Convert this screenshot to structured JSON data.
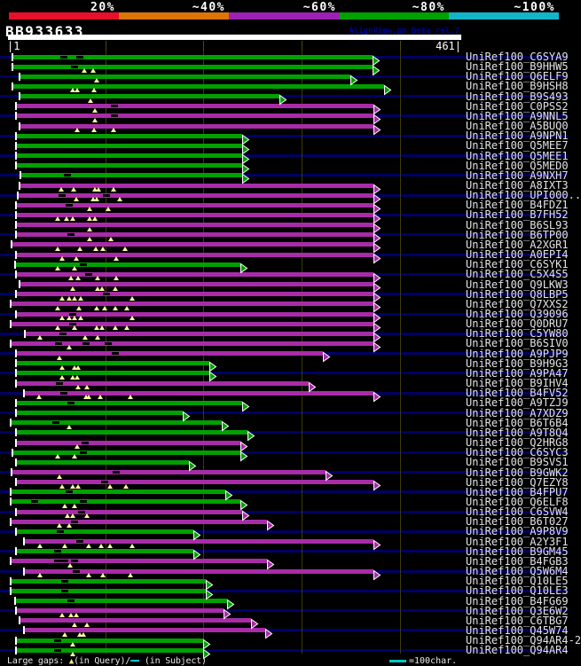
{
  "title": "BB933633",
  "watermark": "AlignView.pm Beta rel.7",
  "identity_scale": {
    "labels": [
      "20%",
      "~40%",
      "~60%",
      "~80%",
      "~100%"
    ],
    "colors": [
      "#e81028",
      "#dc7408",
      "#9c22b4",
      "#00a000",
      "#14b4c8"
    ]
  },
  "ruler": {
    "start_label": "|1",
    "end_label": "461|"
  },
  "footer": {
    "prefix": "Large gaps: ",
    "query_gap_symbol": "▲",
    "mid": "(in Query)/",
    "subject_gap_color": "#00c8c8",
    "suffix": " (in Subject)",
    "legend_text": "=100char."
  },
  "chart_data": {
    "type": "alignment-coverage",
    "query": {
      "id": "BB933633",
      "start": 1,
      "end": 461
    },
    "scale_note": "x_px = 9 + (residue-1)*1.108; gridlines every 100 residues",
    "colors": {
      "green_bar": "#00a000",
      "magenta_bar": "#a82ca8"
    },
    "rows": [
      {
        "label": "UniRef100_C6SYA9",
        "cls": "g",
        "s": 14,
        "tip": 427,
        "dashes": [
          72,
          90
        ],
        "tris": []
      },
      {
        "label": "UniRef100_B9HHW5",
        "cls": "g",
        "s": 14,
        "tip": 427,
        "dashes": [
          84
        ],
        "tris": [
          95,
          105
        ]
      },
      {
        "label": "UniRef100_Q6ELF9",
        "cls": "g",
        "s": 22,
        "tip": 402,
        "dashes": [],
        "tris": [
          109
        ]
      },
      {
        "label": "UniRef100_B9HSH8",
        "cls": "g",
        "s": 14,
        "tip": 440,
        "dashes": [],
        "tris": [
          82,
          87,
          106
        ]
      },
      {
        "label": "UniRef100_B9S493",
        "cls": "g",
        "s": 22,
        "tip": 322,
        "dashes": [],
        "tris": [
          102
        ]
      },
      {
        "label": "UniRef100_C0PSS2",
        "cls": "m",
        "s": 18,
        "tip": 428,
        "dashes": [
          129
        ],
        "tris": [
          107
        ]
      },
      {
        "label": "UniRef100_A9NNL5",
        "cls": "m",
        "s": 18,
        "tip": 428,
        "dashes": [
          129
        ],
        "tris": [
          107
        ]
      },
      {
        "label": "UniRef100_A5BUQ0",
        "cls": "m",
        "s": 22,
        "tip": 428,
        "dashes": [],
        "tris": [
          87,
          106,
          128
        ]
      },
      {
        "label": "UniRef100_A9NPN1",
        "cls": "g",
        "s": 18,
        "tip": 280,
        "dashes": [],
        "tris": []
      },
      {
        "label": "UniRef100_Q5MEE7",
        "cls": "g",
        "s": 18,
        "tip": 280,
        "dashes": [],
        "tris": []
      },
      {
        "label": "UniRef100_Q5MEE1",
        "cls": "g",
        "s": 18,
        "tip": 280,
        "dashes": [],
        "tris": []
      },
      {
        "label": "UniRef100_Q5MED0",
        "cls": "g",
        "s": 18,
        "tip": 280,
        "dashes": [],
        "tris": []
      },
      {
        "label": "UniRef100_A9NXH7",
        "cls": "g",
        "s": 23,
        "tip": 280,
        "dashes": [
          76
        ],
        "tris": []
      },
      {
        "label": "UniRef100_A8IXT3",
        "cls": "m",
        "s": 22,
        "tip": 428,
        "dashes": [],
        "tris": [
          69,
          83,
          107,
          111,
          128
        ]
      },
      {
        "label": "UniRef100_UPI000..",
        "cls": "m",
        "s": 20,
        "tip": 428,
        "dashes": [
          70,
          120
        ],
        "tris": [
          86,
          105,
          109,
          135
        ]
      },
      {
        "label": "UniRef100_B4FDZ1",
        "cls": "m",
        "s": 18,
        "tip": 428,
        "dashes": [
          78
        ],
        "tris": [
          101,
          122
        ]
      },
      {
        "label": "UniRef100_B7FH52",
        "cls": "m",
        "s": 18,
        "tip": 428,
        "dashes": [],
        "tris": [
          65,
          75,
          82,
          101,
          107
        ]
      },
      {
        "label": "UniRef100_B6SL93",
        "cls": "m",
        "s": 18,
        "tip": 428,
        "dashes": [],
        "tris": [
          101
        ]
      },
      {
        "label": "UniRef100_B6TP00",
        "cls": "m",
        "s": 18,
        "tip": 428,
        "dashes": [
          80
        ],
        "tris": [
          101,
          125
        ]
      },
      {
        "label": "UniRef100_A2XGR1",
        "cls": "m",
        "s": 13,
        "tip": 428,
        "dashes": [],
        "tris": [
          65,
          90,
          108,
          116,
          141
        ]
      },
      {
        "label": "UniRef100_A0EPI4",
        "cls": "m",
        "s": 18,
        "tip": 428,
        "dashes": [],
        "tris": [
          70,
          86,
          131
        ]
      },
      {
        "label": "UniRef100_C6SYK1",
        "cls": "g",
        "s": 17,
        "tip": 278,
        "dashes": [
          94
        ],
        "tris": [
          65,
          84
        ]
      },
      {
        "label": "UniRef100_C5X4S5",
        "cls": "m",
        "s": 18,
        "tip": 428,
        "dashes": [
          100
        ],
        "tris": [
          80,
          88,
          110,
          131
        ]
      },
      {
        "label": "UniRef100_Q9LKW3",
        "cls": "m",
        "s": 22,
        "tip": 428,
        "dashes": [],
        "tris": [
          82,
          110,
          115,
          130
        ]
      },
      {
        "label": "UniRef100_Q8LBP5",
        "cls": "m",
        "s": 18,
        "tip": 428,
        "dashes": [
          120
        ],
        "tris": [
          70,
          78,
          84,
          91,
          149
        ]
      },
      {
        "label": "UniRef100_Q7XXS2",
        "cls": "m",
        "s": 12,
        "tip": 428,
        "dashes": [],
        "tris": [
          65,
          89,
          109,
          118,
          130,
          143
        ]
      },
      {
        "label": "UniRef100_Q39096",
        "cls": "m",
        "s": 18,
        "tip": 428,
        "dashes": [
          82
        ],
        "tris": [
          70,
          78,
          84,
          91,
          149
        ]
      },
      {
        "label": "UniRef100_Q0DRU7",
        "cls": "m",
        "s": 12,
        "tip": 428,
        "dashes": [
          82
        ],
        "tris": [
          65,
          84,
          109,
          115,
          130,
          143
        ]
      },
      {
        "label": "UniRef100_C5YW80",
        "cls": "m",
        "s": 28,
        "tip": 428,
        "dashes": [
          71
        ],
        "tris": [
          45,
          96,
          110
        ]
      },
      {
        "label": "UniRef100_B6SIV0",
        "cls": "m",
        "s": 12,
        "tip": 428,
        "dashes": [
          66,
          97,
          122
        ],
        "tris": [
          78
        ]
      },
      {
        "label": "UniRef100_A9PJP9",
        "cls": "m",
        "s": 18,
        "tip": 371,
        "dashes": [
          130
        ],
        "tris": [
          67
        ]
      },
      {
        "label": "UniRef100_B9H9G3",
        "cls": "g",
        "s": 18,
        "tip": 243,
        "dashes": [],
        "tris": [
          70,
          84,
          88
        ]
      },
      {
        "label": "UniRef100_A9PA47",
        "cls": "g",
        "s": 18,
        "tip": 243,
        "dashes": [],
        "tris": [
          70,
          82,
          87
        ]
      },
      {
        "label": "UniRef100_B9IHV4",
        "cls": "m",
        "s": 18,
        "tip": 355,
        "dashes": [
          67
        ],
        "tris": [
          88,
          98
        ]
      },
      {
        "label": "UniRef100_B4FV52",
        "cls": "m",
        "s": 27,
        "tip": 428,
        "dashes": [
          72
        ],
        "tris": [
          44,
          97,
          100,
          113,
          147
        ]
      },
      {
        "label": "UniRef100_A9TZJ9",
        "cls": "g",
        "s": 18,
        "tip": 280,
        "dashes": [
          80
        ],
        "tris": []
      },
      {
        "label": "UniRef100_A7XDZ9",
        "cls": "g",
        "s": 18,
        "tip": 213,
        "dashes": [],
        "tris": []
      },
      {
        "label": "UniRef100_B6T6B4",
        "cls": "g",
        "s": 12,
        "tip": 257,
        "dashes": [
          63
        ],
        "tris": [
          78
        ]
      },
      {
        "label": "UniRef100_A9T8Q4",
        "cls": "g",
        "s": 18,
        "tip": 286,
        "dashes": [],
        "tris": []
      },
      {
        "label": "UniRef100_Q2HRG8",
        "cls": "m",
        "s": 18,
        "tip": 278,
        "dashes": [
          96
        ],
        "tris": [
          87
        ]
      },
      {
        "label": "UniRef100_C6SYC3",
        "cls": "g",
        "s": 14,
        "tip": 278,
        "dashes": [
          94
        ],
        "tris": [
          65,
          84
        ]
      },
      {
        "label": "UniRef100_B9SVS1",
        "cls": "g",
        "s": 18,
        "tip": 220,
        "dashes": [],
        "tris": []
      },
      {
        "label": "UniRef100_B9GWK2",
        "cls": "m",
        "s": 13,
        "tip": 374,
        "dashes": [
          131
        ],
        "tris": [
          67
        ]
      },
      {
        "label": "UniRef100_Q7EZY8",
        "cls": "m",
        "s": 18,
        "tip": 428,
        "dashes": [
          118
        ],
        "tris": [
          70,
          82,
          88,
          124,
          142
        ]
      },
      {
        "label": "UniRef100_B4FPU7",
        "cls": "g",
        "s": 12,
        "tip": 261,
        "dashes": [
          78
        ],
        "tris": []
      },
      {
        "label": "UniRef100_Q6ELF8",
        "cls": "g",
        "s": 12,
        "tip": 278,
        "dashes": [
          39,
          94
        ],
        "tris": [
          73,
          84
        ]
      },
      {
        "label": "UniRef100_C6SVW4",
        "cls": "m",
        "s": 18,
        "tip": 280,
        "dashes": [
          92
        ],
        "tris": [
          76,
          82,
          98
        ]
      },
      {
        "label": "UniRef100_B6T027",
        "cls": "m",
        "s": 12,
        "tip": 308,
        "dashes": [
          84
        ],
        "tris": [
          67,
          78
        ]
      },
      {
        "label": "UniRef100_A9P8V9",
        "cls": "g",
        "s": 18,
        "tip": 225,
        "dashes": [
          68
        ],
        "tris": []
      },
      {
        "label": "UniRef100_A2Y3F1",
        "cls": "m",
        "s": 27,
        "tip": 428,
        "dashes": [
          90
        ],
        "tris": [
          45,
          73,
          100,
          114,
          124,
          149
        ]
      },
      {
        "label": "UniRef100_B9GM45",
        "cls": "g",
        "s": 18,
        "tip": 225,
        "dashes": [
          65
        ],
        "tris": []
      },
      {
        "label": "UniRef100_B4FGB3",
        "cls": "m",
        "s": 12,
        "tip": 308,
        "dashes": [
          65,
          73,
          84
        ],
        "tris": [
          79
        ]
      },
      {
        "label": "UniRef100_Q5W6M4",
        "cls": "m",
        "s": 27,
        "tip": 428,
        "dashes": [
          86
        ],
        "tris": [
          45,
          100,
          116,
          147
        ]
      },
      {
        "label": "UniRef100_Q10LE5",
        "cls": "g",
        "s": 12,
        "tip": 239,
        "dashes": [
          73
        ],
        "tris": []
      },
      {
        "label": "UniRef100_Q10LE3",
        "cls": "g",
        "s": 12,
        "tip": 239,
        "dashes": [
          73
        ],
        "tris": []
      },
      {
        "label": "UniRef100_B4FG69",
        "cls": "g",
        "s": 17,
        "tip": 263,
        "dashes": [
          80
        ],
        "tris": []
      },
      {
        "label": "UniRef100_Q3E6W2",
        "cls": "m",
        "s": 18,
        "tip": 259,
        "dashes": [],
        "tris": [
          70,
          80,
          86
        ]
      },
      {
        "label": "UniRef100_C6TBG7",
        "cls": "m",
        "s": 22,
        "tip": 290,
        "dashes": [],
        "tris": [
          84,
          98
        ]
      },
      {
        "label": "UniRef100_Q45W74",
        "cls": "m",
        "s": 27,
        "tip": 306,
        "dashes": [],
        "tris": [
          73,
          90,
          94
        ]
      },
      {
        "label": "UniRef100_Q94AR4-2",
        "cls": "g",
        "s": 18,
        "tip": 236,
        "dashes": [
          65
        ],
        "tris": [
          82
        ]
      },
      {
        "label": "UniRef100_Q94AR4",
        "cls": "g",
        "s": 18,
        "tip": 236,
        "dashes": [
          65
        ],
        "tris": [
          82
        ]
      }
    ]
  }
}
